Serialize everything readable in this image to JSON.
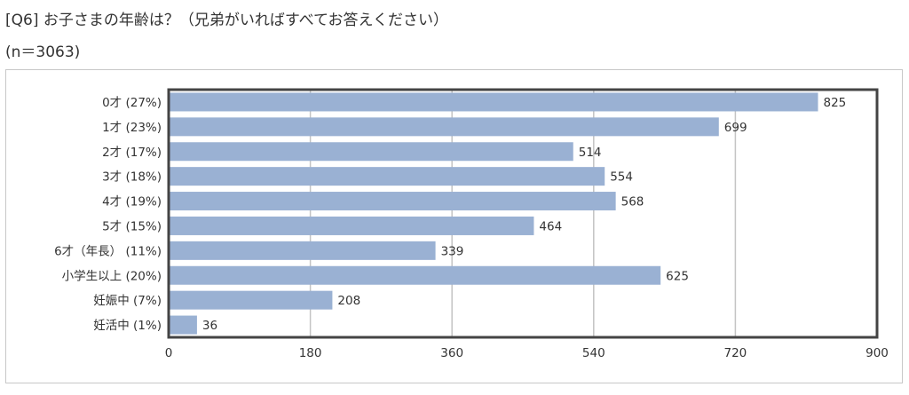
{
  "title": "[Q6] お子さまの年齢は？（兄弟がいればすべてお答えください）",
  "subtitle": "(n＝3063)",
  "chart_data": {
    "type": "bar",
    "orientation": "horizontal",
    "categories": [
      "0才 (27%)",
      "1才 (23%)",
      "2才 (17%)",
      "3才 (18%)",
      "4才 (19%)",
      "5才 (15%)",
      "6才（年長） (11%)",
      "小学生以上 (20%)",
      "妊娠中 (7%)",
      "妊活中 (1%)"
    ],
    "values": [
      825,
      699,
      514,
      554,
      568,
      464,
      339,
      625,
      208,
      36
    ],
    "xlim": [
      0,
      900
    ],
    "xticks": [
      0,
      180,
      360,
      540,
      720,
      900
    ],
    "xtick_labels": [
      "0",
      "180",
      "360",
      "540",
      "720",
      "900"
    ],
    "grid": true,
    "bar_color": "#9ab1d3",
    "gridline_color": "#c4c4c4",
    "plot_border_color": "#444444"
  }
}
